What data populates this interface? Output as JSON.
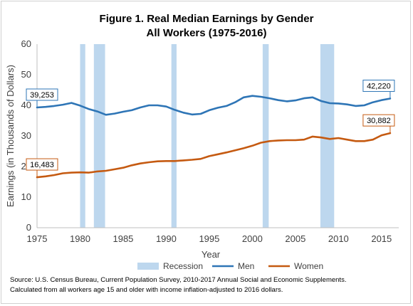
{
  "chart_data": {
    "type": "line",
    "title_line1": "Figure 1. Real Median Earnings by Gender",
    "title_line2": "All Workers (1975-2016)",
    "xlabel": "Year",
    "ylabel": "Earnings (in Thousands of Dollars)",
    "xlim": [
      1975,
      2017
    ],
    "ylim": [
      0,
      60
    ],
    "x_ticks": [
      1975,
      1980,
      1985,
      1990,
      1995,
      2000,
      2005,
      2010,
      2015
    ],
    "y_ticks": [
      0,
      10,
      20,
      30,
      40,
      50,
      60
    ],
    "recessions": [
      {
        "start": 1980.0,
        "end": 1980.6
      },
      {
        "start": 1981.6,
        "end": 1982.9
      },
      {
        "start": 1990.6,
        "end": 1991.2
      },
      {
        "start": 2001.2,
        "end": 2001.9
      },
      {
        "start": 2007.9,
        "end": 2009.5
      }
    ],
    "recession_color": "#bdd7ee",
    "series": [
      {
        "name": "Men",
        "color": "#2e75b6",
        "x": [
          1975,
          1976,
          1977,
          1978,
          1979,
          1980,
          1981,
          1982,
          1983,
          1984,
          1985,
          1986,
          1987,
          1988,
          1989,
          1990,
          1991,
          1992,
          1993,
          1994,
          1995,
          1996,
          1997,
          1998,
          1999,
          2000,
          2001,
          2002,
          2003,
          2004,
          2005,
          2006,
          2007,
          2008,
          2009,
          2010,
          2011,
          2012,
          2013,
          2014,
          2015,
          2016
        ],
        "y": [
          39.3,
          39.5,
          39.8,
          40.2,
          40.8,
          39.9,
          38.8,
          38.0,
          36.9,
          37.3,
          37.9,
          38.4,
          39.3,
          40.0,
          40.0,
          39.6,
          38.5,
          37.6,
          37.0,
          37.2,
          38.4,
          39.2,
          39.8,
          41.0,
          42.6,
          43.1,
          42.8,
          42.3,
          41.7,
          41.3,
          41.6,
          42.3,
          42.6,
          41.4,
          40.7,
          40.6,
          40.3,
          39.8,
          40.0,
          41.0,
          41.7,
          42.2
        ]
      },
      {
        "name": "Women",
        "color": "#c55a11",
        "x": [
          1975,
          1976,
          1977,
          1978,
          1979,
          1980,
          1981,
          1982,
          1983,
          1984,
          1985,
          1986,
          1987,
          1988,
          1989,
          1990,
          1991,
          1992,
          1993,
          1994,
          1995,
          1996,
          1997,
          1998,
          1999,
          2000,
          2001,
          2002,
          2003,
          2004,
          2005,
          2006,
          2007,
          2008,
          2009,
          2010,
          2011,
          2012,
          2013,
          2014,
          2015,
          2016
        ],
        "y": [
          16.5,
          16.8,
          17.2,
          17.8,
          18.0,
          18.1,
          18.0,
          18.4,
          18.6,
          19.1,
          19.6,
          20.4,
          21.0,
          21.4,
          21.7,
          21.8,
          21.8,
          22.0,
          22.2,
          22.5,
          23.4,
          24.0,
          24.6,
          25.3,
          26.0,
          26.8,
          27.8,
          28.3,
          28.5,
          28.6,
          28.6,
          28.8,
          29.8,
          29.5,
          29.0,
          29.3,
          28.8,
          28.3,
          28.3,
          28.8,
          30.2,
          30.9
        ]
      }
    ],
    "callouts": [
      {
        "series": "Men",
        "x": 1975,
        "label": "39,253"
      },
      {
        "series": "Women",
        "x": 1975,
        "label": "16,483"
      },
      {
        "series": "Men",
        "x": 2016,
        "label": "42,220"
      },
      {
        "series": "Women",
        "x": 2016,
        "label": "30,882"
      }
    ],
    "legend": {
      "position": "bottom",
      "items": [
        {
          "label": "Recession",
          "kind": "box",
          "color": "#bdd7ee"
        },
        {
          "label": "Men",
          "kind": "line",
          "color": "#2e75b6"
        },
        {
          "label": "Women",
          "kind": "line",
          "color": "#c55a11"
        }
      ]
    }
  },
  "source_line1": "Source: U.S. Census Bureau, Current Population Survey, 2010-2017 Annual Social and Economic Supplements.",
  "source_line2": "Calculated from all workers age 15 and older with income inflation-adjusted to 2016 dollars."
}
